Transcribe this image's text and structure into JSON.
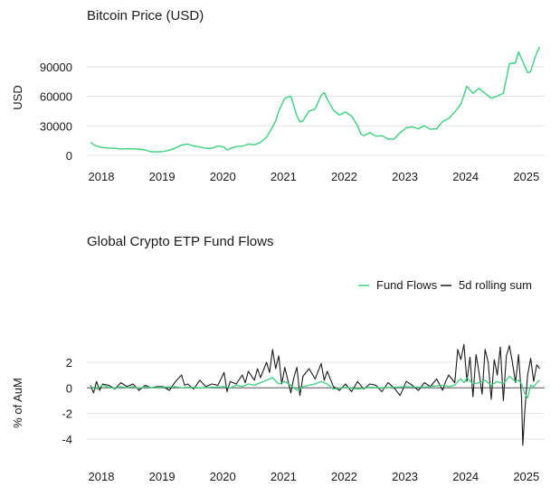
{
  "colors": {
    "price_line": "#3ecf7f",
    "flow_line": "#3ecf7f",
    "rolling_line": "#1a1a1a",
    "grid": "#e3e3e3",
    "zero_line": "#555555"
  },
  "chart_data": [
    {
      "type": "line",
      "title": "Bitcoin Price (USD)",
      "xlabel": "",
      "ylabel": "USD",
      "xlim": [
        2018.0,
        2025.45
      ],
      "ylim": [
        0,
        110000
      ],
      "x_ticks": [
        "2018",
        "2019",
        "2020",
        "2021",
        "2022",
        "2023",
        "2024",
        "2025"
      ],
      "y_ticks": [
        "0",
        "30000",
        "60000",
        "90000"
      ],
      "grid": true,
      "series": [
        {
          "x": [
            2018.0,
            2018.05,
            2018.1,
            2018.2,
            2018.3,
            2018.4,
            2018.5,
            2018.6,
            2018.7,
            2018.8,
            2018.9,
            2019.0,
            2019.1,
            2019.2,
            2019.3,
            2019.4,
            2019.5,
            2019.6,
            2019.7,
            2019.8,
            2019.9,
            2020.0,
            2020.1,
            2020.2,
            2020.25,
            2020.3,
            2020.4,
            2020.5,
            2020.6,
            2020.7,
            2020.8,
            2020.9,
            2021.0,
            2021.05,
            2021.1,
            2021.2,
            2021.3,
            2021.4,
            2021.45,
            2021.5,
            2021.6,
            2021.7,
            2021.8,
            2021.85,
            2021.9,
            2022.0,
            2022.1,
            2022.2,
            2022.3,
            2022.4,
            2022.45,
            2022.5,
            2022.6,
            2022.7,
            2022.8,
            2022.9,
            2023.0,
            2023.1,
            2023.2,
            2023.3,
            2023.4,
            2023.5,
            2023.6,
            2023.7,
            2023.8,
            2023.9,
            2024.0,
            2024.1,
            2024.2,
            2024.3,
            2024.4,
            2024.5,
            2024.6,
            2024.7,
            2024.8,
            2024.9,
            2025.0,
            2025.05,
            2025.1,
            2025.2,
            2025.25,
            2025.3,
            2025.35,
            2025.4
          ],
          "y": [
            13000,
            11000,
            9500,
            8000,
            7500,
            7200,
            6500,
            6800,
            6500,
            6400,
            5500,
            3700,
            3600,
            3900,
            5200,
            7500,
            10500,
            11500,
            9500,
            8500,
            7300,
            7200,
            9500,
            8500,
            5500,
            7000,
            9000,
            9300,
            11500,
            10800,
            13200,
            18500,
            29000,
            35000,
            45000,
            58000,
            60000,
            40000,
            34000,
            35000,
            45000,
            47000,
            61000,
            64000,
            57000,
            46000,
            41000,
            44000,
            40000,
            30000,
            22000,
            20000,
            23000,
            19500,
            20000,
            16500,
            16600,
            23000,
            28000,
            29000,
            27000,
            30000,
            26500,
            27000,
            34500,
            37500,
            44000,
            52000,
            70000,
            63000,
            68000,
            63000,
            58000,
            60000,
            63000,
            93000,
            94000,
            105000,
            98000,
            84000,
            85000,
            95000,
            104000,
            110000
          ]
        }
      ]
    },
    {
      "type": "line",
      "title": "Global Crypto ETP Fund Flows",
      "xlabel": "",
      "ylabel": "% of AuM",
      "xlim": [
        2018.0,
        2025.45
      ],
      "ylim": [
        -5,
        3.2
      ],
      "x_ticks": [
        "2018",
        "2019",
        "2020",
        "2021",
        "2022",
        "2023",
        "2024",
        "2025"
      ],
      "y_ticks": [
        "2",
        "0",
        "-2",
        "-4"
      ],
      "grid": true,
      "legend": {
        "position": "top-right",
        "entries": [
          "Fund Flows",
          "5d rolling sum"
        ]
      },
      "series": [
        {
          "name": "Fund Flows",
          "x": [
            2018.0,
            2018.1,
            2018.2,
            2018.3,
            2018.4,
            2018.5,
            2018.6,
            2018.7,
            2018.8,
            2018.9,
            2019.0,
            2019.2,
            2019.4,
            2019.5,
            2019.6,
            2019.8,
            2020.0,
            2020.2,
            2020.3,
            2020.4,
            2020.5,
            2020.6,
            2020.7,
            2020.8,
            2020.9,
            2021.0,
            2021.1,
            2021.2,
            2021.3,
            2021.4,
            2021.5,
            2021.6,
            2021.7,
            2021.8,
            2021.9,
            2022.0,
            2022.2,
            2022.4,
            2022.6,
            2022.8,
            2023.0,
            2023.2,
            2023.4,
            2023.6,
            2023.8,
            2023.9,
            2024.0,
            2024.05,
            2024.1,
            2024.15,
            2024.2,
            2024.3,
            2024.4,
            2024.5,
            2024.6,
            2024.7,
            2024.8,
            2024.85,
            2024.9,
            2025.0,
            2025.05,
            2025.1,
            2025.15,
            2025.2,
            2025.25,
            2025.3,
            2025.35,
            2025.4
          ],
          "y": [
            0.1,
            -0.1,
            0.2,
            0.05,
            -0.05,
            0.1,
            0.0,
            0.1,
            -0.05,
            0.1,
            0.0,
            0.05,
            0.1,
            0.0,
            0.05,
            0.0,
            0.05,
            0.1,
            0.0,
            0.2,
            0.1,
            0.3,
            0.2,
            0.4,
            0.6,
            0.8,
            0.3,
            0.5,
            0.2,
            -0.2,
            0.1,
            0.2,
            0.3,
            0.5,
            0.3,
            -0.1,
            0.05,
            -0.1,
            0.05,
            0.0,
            0.05,
            0.1,
            0.05,
            0.1,
            0.2,
            0.1,
            0.2,
            0.5,
            0.7,
            0.4,
            0.8,
            0.3,
            0.4,
            0.6,
            0.2,
            0.5,
            0.3,
            0.6,
            0.9,
            0.5,
            0.6,
            0.3,
            -0.4,
            -0.8,
            0.2,
            0.1,
            0.4,
            0.6
          ]
        },
        {
          "name": "5d rolling sum",
          "x": [
            2018.0,
            2018.05,
            2018.1,
            2018.15,
            2018.2,
            2018.3,
            2018.4,
            2018.5,
            2018.6,
            2018.7,
            2018.8,
            2018.9,
            2019.0,
            2019.1,
            2019.2,
            2019.3,
            2019.4,
            2019.5,
            2019.55,
            2019.6,
            2019.7,
            2019.8,
            2019.9,
            2020.0,
            2020.1,
            2020.2,
            2020.25,
            2020.3,
            2020.4,
            2020.5,
            2020.55,
            2020.6,
            2020.7,
            2020.75,
            2020.8,
            2020.85,
            2020.9,
            2020.95,
            2021.0,
            2021.05,
            2021.1,
            2021.15,
            2021.2,
            2021.3,
            2021.35,
            2021.4,
            2021.45,
            2021.5,
            2021.6,
            2021.7,
            2021.8,
            2021.85,
            2021.9,
            2022.0,
            2022.1,
            2022.2,
            2022.3,
            2022.4,
            2022.5,
            2022.6,
            2022.7,
            2022.8,
            2022.9,
            2023.0,
            2023.1,
            2023.2,
            2023.3,
            2023.4,
            2023.5,
            2023.6,
            2023.7,
            2023.8,
            2023.85,
            2023.9,
            2024.0,
            2024.05,
            2024.1,
            2024.15,
            2024.2,
            2024.25,
            2024.3,
            2024.35,
            2024.4,
            2024.45,
            2024.5,
            2024.55,
            2024.6,
            2024.65,
            2024.7,
            2024.75,
            2024.8,
            2024.85,
            2024.9,
            2024.95,
            2025.0,
            2025.05,
            2025.1,
            2025.12,
            2025.15,
            2025.2,
            2025.25,
            2025.3,
            2025.35,
            2025.4
          ],
          "y": [
            0.2,
            -0.4,
            0.5,
            -0.2,
            0.3,
            0.2,
            -0.1,
            0.4,
            0.1,
            0.3,
            -0.2,
            0.2,
            0.0,
            0.1,
            0.1,
            -0.2,
            0.5,
            1.0,
            0.2,
            0.3,
            -0.1,
            0.6,
            0.1,
            0.3,
            0.2,
            1.2,
            -0.3,
            0.5,
            0.3,
            1.0,
            0.4,
            1.3,
            0.6,
            1.5,
            0.8,
            1.4,
            2.0,
            1.2,
            3.0,
            1.5,
            2.5,
            0.3,
            1.6,
            -0.4,
            0.8,
            1.6,
            -0.6,
            0.9,
            1.5,
            0.7,
            1.9,
            0.6,
            1.3,
            0.1,
            -0.2,
            0.3,
            -0.3,
            0.5,
            -0.1,
            0.3,
            0.2,
            -0.3,
            0.4,
            0.0,
            -0.6,
            0.5,
            0.2,
            -0.2,
            0.4,
            0.1,
            0.7,
            -0.2,
            0.5,
            1.0,
            0.4,
            3.0,
            2.2,
            3.4,
            0.5,
            2.4,
            -0.7,
            2.6,
            1.2,
            -0.5,
            3.0,
            2.0,
            -0.9,
            2.2,
            1.0,
            3.2,
            -1.0,
            2.5,
            3.3,
            2.0,
            0.4,
            2.6,
            -0.8,
            -4.5,
            -2.0,
            1.0,
            2.3,
            0.5,
            1.8,
            1.5
          ]
        }
      ]
    }
  ]
}
